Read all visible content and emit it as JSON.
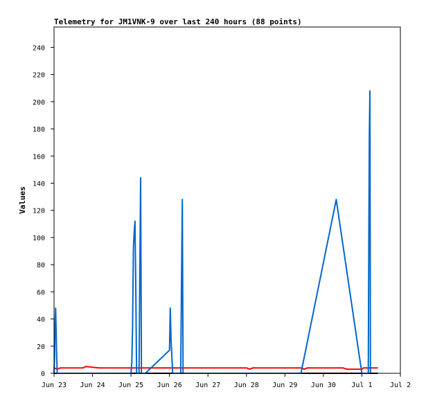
{
  "chart_data": {
    "type": "line",
    "title": "Telemetry for JM1VNK-9 over last 240 hours (88 points)",
    "ylabel": "Values",
    "xlabel": "",
    "ylim": [
      0,
      255
    ],
    "xlim": [
      "Jun 23 00:00",
      "Jul 2 00:00"
    ],
    "x_ticks": [
      "Jun 23",
      "Jun 24",
      "Jun 25",
      "Jun 26",
      "Jun 27",
      "Jun 28",
      "Jun 29",
      "Jun 30",
      "Jul 1",
      "Jul 2"
    ],
    "y_ticks": [
      0,
      20,
      40,
      60,
      80,
      100,
      120,
      140,
      160,
      180,
      200,
      220,
      240
    ],
    "grid": false,
    "series": [
      {
        "color": "#000000",
        "points": [
          [
            "Jun 23 00:00",
            0
          ],
          [
            "Jul 1 10:00",
            0
          ]
        ]
      },
      {
        "color": "#ff0000",
        "points": [
          [
            "Jun 23 00:00",
            4
          ],
          [
            "Jun 23 02:00",
            3
          ],
          [
            "Jun 23 04:00",
            4
          ],
          [
            "Jun 23 18:00",
            4
          ],
          [
            "Jun 23 20:00",
            5
          ],
          [
            "Jun 24 04:00",
            4
          ],
          [
            "Jun 28 00:00",
            4
          ],
          [
            "Jun 28 02:00",
            3
          ],
          [
            "Jun 28 04:00",
            4
          ],
          [
            "Jun 29 10:00",
            4
          ],
          [
            "Jun 29 12:00",
            3
          ],
          [
            "Jun 29 14:00",
            4
          ],
          [
            "Jun 30 12:00",
            4
          ],
          [
            "Jun 30 15:00",
            3
          ],
          [
            "Jul 1 00:00",
            3
          ],
          [
            "Jul 1 01:00",
            4
          ],
          [
            "Jul 1 10:00",
            4
          ]
        ]
      },
      {
        "color": "#0066cc",
        "points": [
          [
            "Jun 23 00:00",
            0
          ],
          [
            "Jun 23 00:20",
            12
          ],
          [
            "Jun 23 00:40",
            36
          ],
          [
            "Jun 23 01:00",
            48
          ],
          [
            "Jun 23 01:20",
            30
          ],
          [
            "Jun 23 01:40",
            12
          ],
          [
            "Jun 23 02:00",
            0
          ],
          [
            "Jun 25 00:00",
            0
          ],
          [
            "Jun 25 00:30",
            8
          ],
          [
            "Jun 25 01:00",
            34
          ],
          [
            "Jun 25 01:30",
            92
          ],
          [
            "Jun 25 02:00",
            104
          ],
          [
            "Jun 25 02:30",
            112
          ],
          [
            "Jun 25 03:00",
            60
          ],
          [
            "Jun 25 03:30",
            0
          ],
          [
            "Jun 25 05:00",
            0
          ],
          [
            "Jun 25 05:30",
            72
          ],
          [
            "Jun 25 06:00",
            144
          ],
          [
            "Jun 25 06:30",
            0
          ],
          [
            "Jun 25 09:00",
            0
          ],
          [
            "Jun 26 00:00",
            17
          ],
          [
            "Jun 26 00:30",
            48
          ],
          [
            "Jun 26 01:00",
            24
          ],
          [
            "Jun 26 02:00",
            0
          ],
          [
            "Jun 26 07:00",
            0
          ],
          [
            "Jun 26 07:30",
            64
          ],
          [
            "Jun 26 08:00",
            128
          ],
          [
            "Jun 26 08:30",
            0
          ],
          [
            "Jun 29 10:00",
            0
          ],
          [
            "Jun 30 08:00",
            128
          ],
          [
            "Jul 1 00:00",
            0
          ],
          [
            "Jul 1 04:00",
            0
          ],
          [
            "Jul 1 04:20",
            104
          ],
          [
            "Jul 1 04:40",
            174
          ],
          [
            "Jul 1 05:00",
            208
          ],
          [
            "Jul 1 05:20",
            0
          ]
        ]
      }
    ]
  }
}
